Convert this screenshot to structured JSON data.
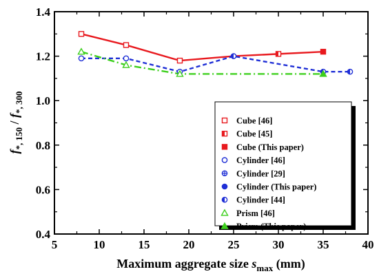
{
  "chart_data": {
    "type": "line",
    "xlabel": {
      "main": "Maximum aggregate size ",
      "var": "s",
      "sub": "max",
      "unit": " (mm)"
    },
    "ylabel": {
      "f1": "f",
      "s1": "*, 150",
      "slash": " / ",
      "f2": "f",
      "s2": "*, 300"
    },
    "xlim": [
      5,
      40
    ],
    "ylim": [
      0.4,
      1.4
    ],
    "xticks": [
      5,
      10,
      15,
      20,
      25,
      30,
      35,
      40
    ],
    "yticks": [
      0.4,
      0.6,
      0.8,
      1.0,
      1.2,
      1.4
    ],
    "ytick_labels": [
      "0.4",
      "0.6",
      "0.8",
      "1.0",
      "1.2",
      "1.4"
    ],
    "grid": false,
    "legend_position": "lower-right",
    "lines": [
      {
        "color": "#e8191e",
        "dash": "",
        "x": [
          8,
          13,
          19,
          25,
          30,
          35
        ],
        "y": [
          1.3,
          1.25,
          1.18,
          1.2,
          1.21,
          1.22
        ]
      },
      {
        "color": "#1f2fd6",
        "dash": "6,4",
        "x": [
          8,
          13,
          19,
          25,
          35,
          38
        ],
        "y": [
          1.19,
          1.19,
          1.13,
          1.2,
          1.13,
          1.13
        ]
      },
      {
        "color": "#3ccf1c",
        "dash": "10,4,2,4",
        "x": [
          8,
          13,
          19,
          35
        ],
        "y": [
          1.22,
          1.16,
          1.12,
          1.12
        ]
      }
    ],
    "series": [
      {
        "name": "Cube [46]",
        "color": "#e8191e",
        "marker": "square-open",
        "x": [
          8,
          13,
          19
        ],
        "y": [
          1.3,
          1.25,
          1.18
        ]
      },
      {
        "name": "Cube [45]",
        "color": "#e8191e",
        "marker": "square-half",
        "x": [
          30
        ],
        "y": [
          1.21
        ]
      },
      {
        "name": "Cube (This paper)",
        "color": "#e8191e",
        "marker": "square-filled",
        "x": [
          35
        ],
        "y": [
          1.22
        ]
      },
      {
        "name": "Cylinder [46]",
        "color": "#1f2fd6",
        "marker": "circle-open",
        "x": [
          8,
          13,
          19
        ],
        "y": [
          1.19,
          1.19,
          1.13
        ]
      },
      {
        "name": "Cylinder [29]",
        "color": "#1f2fd6",
        "marker": "circle-plus",
        "x": [],
        "y": []
      },
      {
        "name": "Cylinder (This paper)",
        "color": "#1f2fd6",
        "marker": "circle-filled",
        "x": [],
        "y": []
      },
      {
        "name": "Cylinder [44]",
        "color": "#1f2fd6",
        "marker": "circle-half",
        "x": [
          25,
          35,
          38
        ],
        "y": [
          1.2,
          1.13,
          1.13
        ]
      },
      {
        "name": "Prism [46]",
        "color": "#3ccf1c",
        "marker": "triangle-open",
        "x": [
          8,
          13,
          19
        ],
        "y": [
          1.22,
          1.16,
          1.12
        ]
      },
      {
        "name": "Prism (This paper)",
        "color": "#3ccf1c",
        "marker": "triangle-filled",
        "x": [
          35
        ],
        "y": [
          1.12
        ]
      }
    ]
  }
}
